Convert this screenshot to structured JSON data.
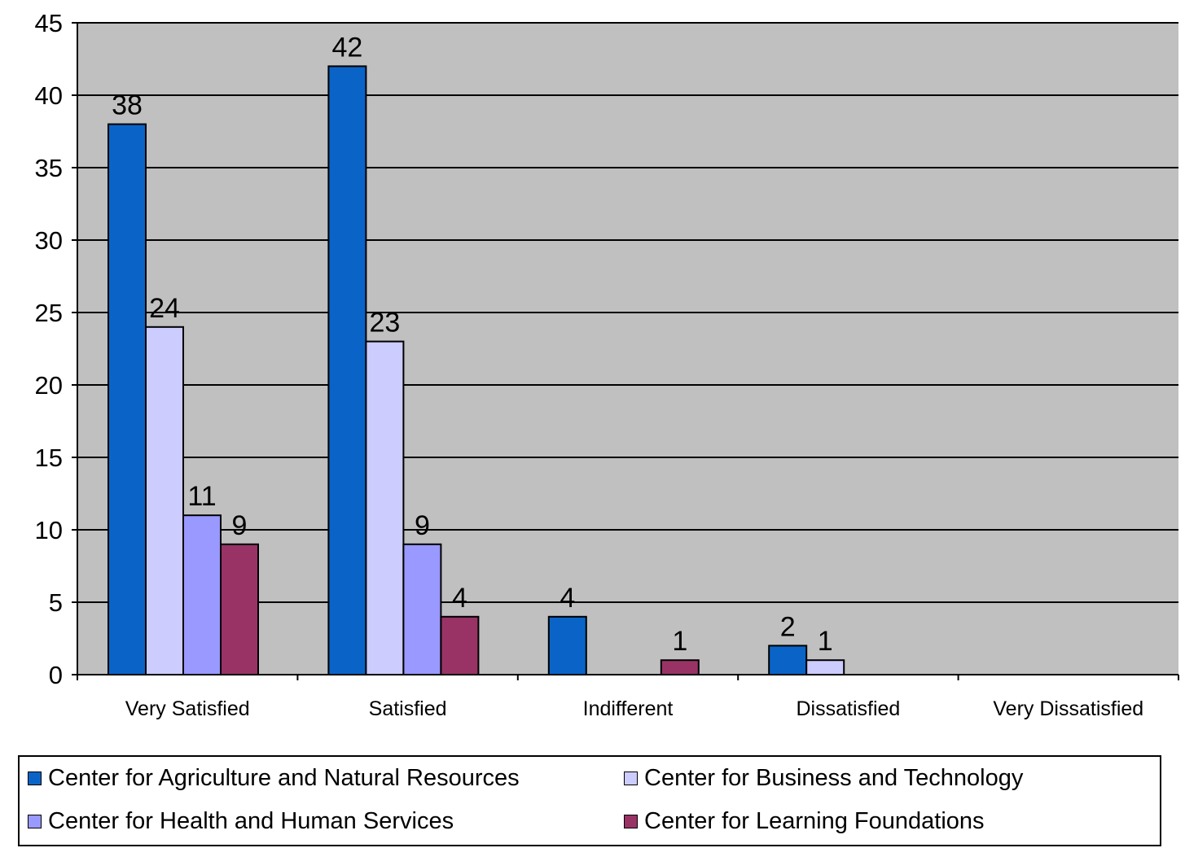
{
  "chart_data": {
    "type": "bar",
    "categories": [
      "Very Satisfied",
      "Satisfied",
      "Indifferent",
      "Dissatisfied",
      "Very Dissatisfied"
    ],
    "series": [
      {
        "name": "Center for Agriculture and Natural Resources",
        "color": "#0a64c8",
        "values": [
          38,
          42,
          4,
          2,
          0
        ]
      },
      {
        "name": "Center for Business and Technology",
        "color": "#ccccff",
        "values": [
          24,
          23,
          0,
          1,
          0
        ]
      },
      {
        "name": "Center for Health and Human Services",
        "color": "#9999ff",
        "values": [
          11,
          9,
          0,
          0,
          0
        ]
      },
      {
        "name": "Center for Learning Foundations",
        "color": "#993366",
        "values": [
          9,
          4,
          1,
          0,
          0
        ]
      }
    ],
    "ylim": [
      0,
      45
    ],
    "yticks": [
      0,
      5,
      10,
      15,
      20,
      25,
      30,
      35,
      40,
      45
    ],
    "grid": true,
    "plot_background": "#c0c0c0",
    "legend_position": "bottom"
  }
}
